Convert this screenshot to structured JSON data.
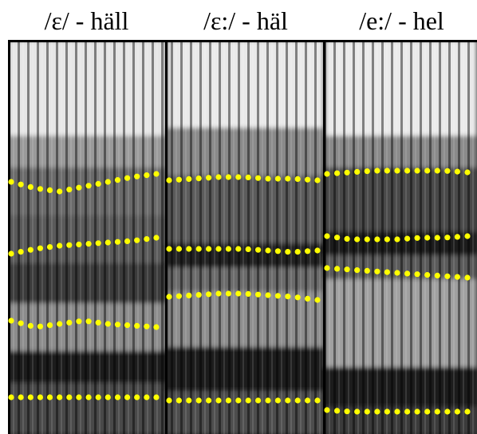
{
  "panels": [
    {
      "label": "/ɛ/ - häll"
    },
    {
      "label": "/ɛ:/ - häl"
    },
    {
      "label": "/e:/ - hel"
    }
  ],
  "colors": {
    "formant_dots": "#ffff00",
    "spectrogram_dark": "#000000",
    "spectrogram_light": "#ffffff",
    "divider": "#000000"
  }
}
